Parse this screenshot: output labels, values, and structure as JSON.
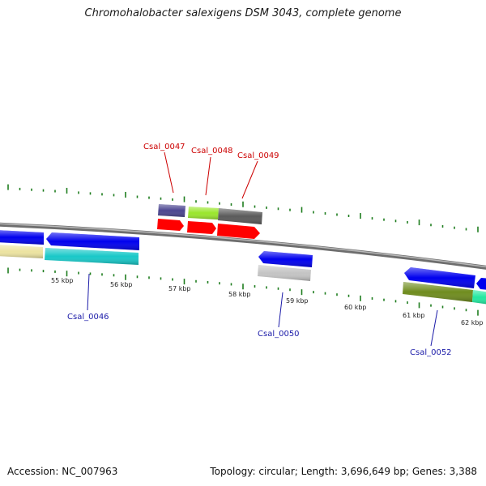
{
  "title": "Chromohalobacter salexigens DSM 3043, complete genome",
  "accession": "Accession: NC_007963",
  "summary": "Topology: circular; Length: 3,696,649 bp; Genes: 3,388",
  "scale_labels": [
    "55 kbp",
    "56 kbp",
    "57 kbp",
    "58 kbp",
    "59 kbp",
    "60 kbp",
    "61 kbp",
    "62 kbp"
  ],
  "gene_labels": {
    "csal_0046": "Csal_0046",
    "csal_0047": "Csal_0047",
    "csal_0048": "Csal_0048",
    "csal_0049": "Csal_0049",
    "csal_0050": "Csal_0050",
    "csal_0052": "Csal_0052"
  },
  "colors": {
    "label_top": "#cc0000",
    "label_bottom": "#1a1aa8",
    "tick": "#1e7d1e",
    "backbone": "#808080",
    "forward_arrow": "#ff0000",
    "reverse_arrow": "#0000ee",
    "slate": "#4b4590",
    "lime": "#9ae62c",
    "dark_gray": "#5a5a5a",
    "khaki": "#ece3a0",
    "cyan": "#18c8c8",
    "light_gray": "#c4c4c4",
    "olive": "#6f8c1e",
    "mint": "#22e8a0"
  }
}
